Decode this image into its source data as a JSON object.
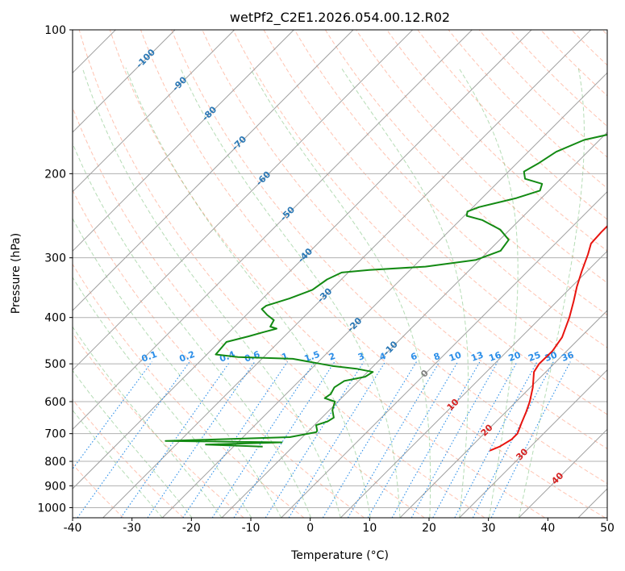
{
  "chart_data": {
    "type": "line",
    "title": "wetPf2_C2E1.2026.054.00.12.R02",
    "xlabel": "Temperature (°C)",
    "ylabel": "Pressure (hPa)",
    "xlim": [
      -40,
      50
    ],
    "ylim": [
      1050,
      100
    ],
    "y_scale": "log",
    "grid": true,
    "x_ticks": [
      "-40",
      "-30",
      "-20",
      "-10",
      "0",
      "10",
      "20",
      "30",
      "40",
      "50"
    ],
    "y_ticks": [
      "100",
      "200",
      "300",
      "400",
      "500",
      "600",
      "700",
      "800",
      "900",
      "1000"
    ],
    "colors": {
      "temperature": "#e8140f",
      "dewpoint": "#138a13",
      "isotherm_label": "#2b78b5",
      "mixing_ratio": "#2b8ee8",
      "dry_adiabat": "#ff7b52",
      "moist_adiabat": "#46a846",
      "isohume_label": "#d62222"
    },
    "series": [
      {
        "key": "temperature",
        "points": [
          [
            6.8,
            100
          ],
          [
            6.0,
            110
          ],
          [
            4.8,
            125
          ],
          [
            3.4,
            140
          ],
          [
            2.8,
            150
          ],
          [
            2.8,
            160
          ],
          [
            3.0,
            170
          ],
          [
            3.3,
            185
          ],
          [
            3.4,
            195
          ],
          [
            3.2,
            205
          ],
          [
            3.4,
            215
          ],
          [
            4.2,
            225
          ],
          [
            5.3,
            235
          ],
          [
            5.8,
            250
          ],
          [
            5.8,
            265
          ],
          [
            6.0,
            280
          ],
          [
            7.3,
            295
          ],
          [
            9.1,
            320
          ],
          [
            10.9,
            345
          ],
          [
            12.8,
            370
          ],
          [
            14.8,
            400
          ],
          [
            16.9,
            440
          ],
          [
            17.6,
            470
          ],
          [
            17.5,
            500
          ],
          [
            18.0,
            520
          ],
          [
            20.4,
            560
          ],
          [
            22.3,
            600
          ],
          [
            23.4,
            630
          ],
          [
            24.5,
            665
          ],
          [
            25.6,
            700
          ],
          [
            25.6,
            720
          ],
          [
            24.8,
            745
          ],
          [
            23.8,
            760
          ]
        ]
      },
      {
        "key": "dewpoint",
        "points": [
          [
            -2.2,
            100
          ],
          [
            -3.5,
            105
          ],
          [
            -5.3,
            115
          ],
          [
            -6.0,
            125
          ],
          [
            -5.8,
            140
          ],
          [
            -8.2,
            155
          ],
          [
            -9.0,
            165
          ],
          [
            -12.6,
            170
          ],
          [
            -15.3,
            180
          ],
          [
            -16.3,
            190
          ],
          [
            -17.4,
            198
          ],
          [
            -16.0,
            205
          ],
          [
            -12.3,
            210
          ],
          [
            -11.5,
            217
          ],
          [
            -14.2,
            225
          ],
          [
            -19.0,
            235
          ],
          [
            -20.2,
            240
          ],
          [
            -19.6,
            245
          ],
          [
            -16.3,
            250
          ],
          [
            -11.6,
            262
          ],
          [
            -8.5,
            275
          ],
          [
            -8.0,
            290
          ],
          [
            -10.6,
            303
          ],
          [
            -18.0,
            313
          ],
          [
            -26.9,
            318
          ],
          [
            -31.1,
            322
          ],
          [
            -32.4,
            333
          ],
          [
            -33.1,
            350
          ],
          [
            -35.5,
            365
          ],
          [
            -38.2,
            378
          ],
          [
            -38.4,
            384
          ],
          [
            -36.5,
            395
          ],
          [
            -34.5,
            405
          ],
          [
            -34.0,
            418
          ],
          [
            -32.6,
            422
          ],
          [
            -34.4,
            430
          ],
          [
            -36.0,
            438
          ],
          [
            -38.8,
            450
          ],
          [
            -38.5,
            478
          ],
          [
            -34.3,
            484
          ],
          [
            -24.8,
            488
          ],
          [
            -17.0,
            505
          ],
          [
            -12.4,
            512
          ],
          [
            -9.1,
            520
          ],
          [
            -9.6,
            532
          ],
          [
            -12.4,
            543
          ],
          [
            -13.0,
            560
          ],
          [
            -12.5,
            578
          ],
          [
            -12.8,
            590
          ],
          [
            -10.5,
            600
          ],
          [
            -9.5,
            625
          ],
          [
            -8.0,
            648
          ],
          [
            -8.4,
            660
          ],
          [
            -9.7,
            672
          ],
          [
            -8.6,
            690
          ],
          [
            -8.5,
            695
          ],
          [
            -12.1,
            712
          ],
          [
            -32.4,
            725
          ],
          [
            -12.6,
            730
          ],
          [
            -25.0,
            738
          ],
          [
            -15.1,
            745
          ]
        ]
      }
    ],
    "isotherm_labels": [
      "-100",
      "-90",
      "-80",
      "-70",
      "-60",
      "-50",
      "-40",
      "-30",
      "-20",
      "-10",
      "0",
      "10",
      "20",
      "30",
      "40"
    ],
    "mixing_ratio_labels": [
      "0.1",
      "0.2",
      "0.4",
      "0.6",
      "1",
      "1.5",
      "2",
      "3",
      "4",
      "6",
      "8",
      "10",
      "13",
      "16",
      "20",
      "25",
      "30",
      "36"
    ]
  }
}
